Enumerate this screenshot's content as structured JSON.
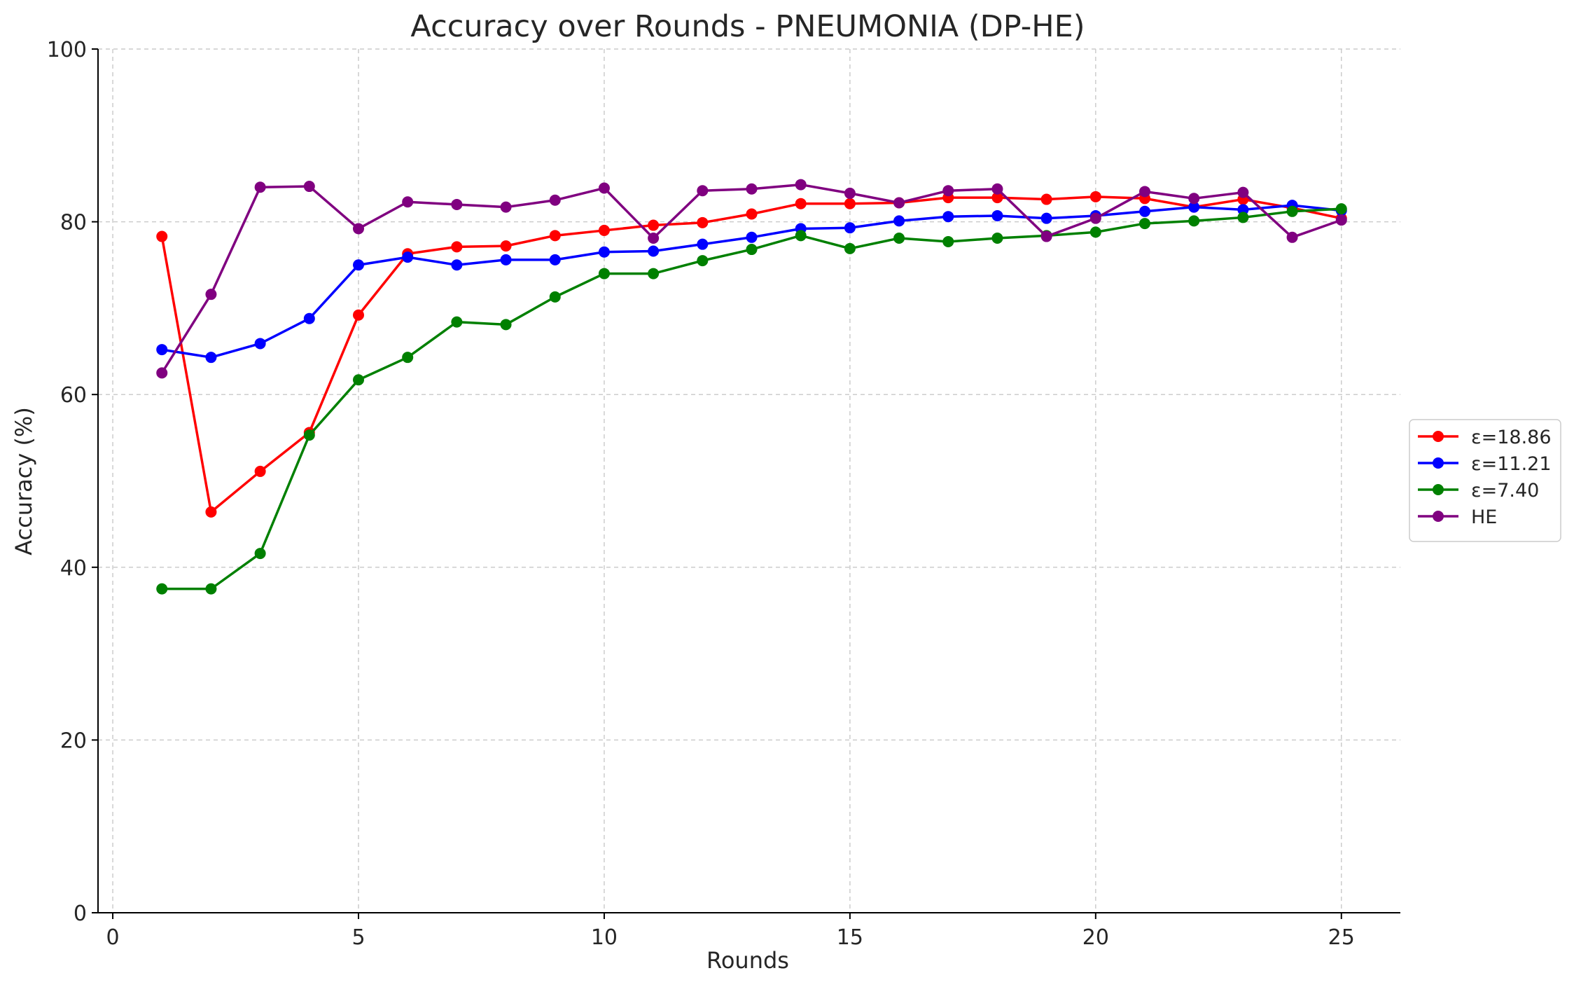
{
  "chart_data": {
    "type": "line",
    "title": "Accuracy over Rounds - PNEUMONIA (DP-HE)",
    "xlabel": "Rounds",
    "ylabel": "Accuracy (%)",
    "xlim": [
      -0.3,
      26.2
    ],
    "ylim": [
      0,
      100
    ],
    "xticks": [
      0,
      5,
      10,
      15,
      20,
      25
    ],
    "yticks": [
      0,
      20,
      40,
      60,
      80,
      100
    ],
    "grid": true,
    "legend_position": "center-right-outside",
    "x": [
      1,
      2,
      3,
      4,
      5,
      6,
      7,
      8,
      9,
      10,
      11,
      12,
      13,
      14,
      15,
      16,
      17,
      18,
      19,
      20,
      21,
      22,
      23,
      24,
      25
    ],
    "series": [
      {
        "name": "ε=18.86",
        "color": "#ff0000",
        "values": [
          78.3,
          46.4,
          51.1,
          55.6,
          69.2,
          76.3,
          77.1,
          77.2,
          78.4,
          79.0,
          79.6,
          79.9,
          80.9,
          82.1,
          82.1,
          82.2,
          82.8,
          82.8,
          82.6,
          82.9,
          82.7,
          81.7,
          82.6,
          81.6,
          80.4
        ]
      },
      {
        "name": "ε=11.21",
        "color": "#0000ff",
        "values": [
          65.2,
          64.3,
          65.9,
          68.8,
          75.0,
          75.9,
          75.0,
          75.6,
          75.6,
          76.5,
          76.6,
          77.4,
          78.2,
          79.2,
          79.3,
          80.1,
          80.6,
          80.7,
          80.4,
          80.7,
          81.2,
          81.7,
          81.4,
          81.9,
          81.3
        ]
      },
      {
        "name": "ε=7.40",
        "color": "#008000",
        "values": [
          37.5,
          37.5,
          41.6,
          55.3,
          61.7,
          64.3,
          68.4,
          68.1,
          71.3,
          74.0,
          74.0,
          75.5,
          76.8,
          78.4,
          76.9,
          78.1,
          77.7,
          78.1,
          78.4,
          78.8,
          79.8,
          80.1,
          80.5,
          81.2,
          81.5
        ]
      },
      {
        "name": "HE",
        "color": "#800080",
        "values": [
          62.5,
          71.6,
          84.0,
          84.1,
          79.2,
          82.3,
          82.0,
          81.7,
          82.5,
          83.9,
          78.1,
          83.6,
          83.8,
          84.3,
          83.3,
          82.2,
          83.6,
          83.8,
          78.3,
          80.4,
          83.5,
          82.7,
          83.4,
          78.2,
          80.2
        ]
      }
    ]
  }
}
